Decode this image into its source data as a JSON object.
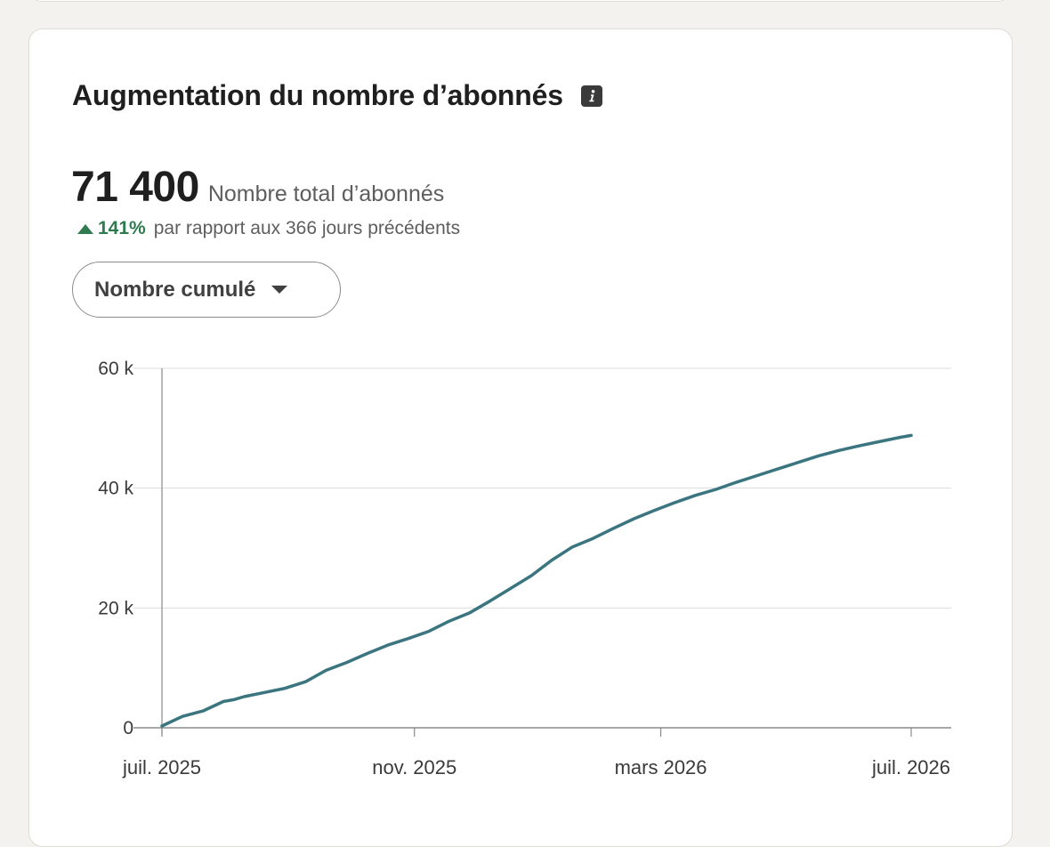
{
  "card": {
    "title": "Augmentation du nombre d’abonnés",
    "info_icon": "info-icon"
  },
  "summary": {
    "total_value": "71 400",
    "total_label": "Nombre total d’abonnés",
    "growth_pct": "141%",
    "growth_text": "par rapport aux 366 jours précédents",
    "growth_color": "#2f7a4f"
  },
  "dropdown": {
    "selected": "Nombre cumulé"
  },
  "chart_data": {
    "type": "line",
    "title": "",
    "xlabel": "",
    "ylabel": "",
    "line_color": "#3b7580",
    "grid": true,
    "ylim": [
      0,
      60000
    ],
    "y_ticks": [
      {
        "value": 0,
        "label": "0"
      },
      {
        "value": 20000,
        "label": "20 k"
      },
      {
        "value": 40000,
        "label": "40 k"
      },
      {
        "value": 60000,
        "label": "60 k"
      }
    ],
    "x_ticks": [
      {
        "value": "2025-07-01",
        "label": "juil. 2025"
      },
      {
        "value": "2025-11-01",
        "label": "nov. 2025"
      },
      {
        "value": "2026-03-01",
        "label": "mars 2026"
      },
      {
        "value": "2026-07-01",
        "label": "juil. 2026"
      }
    ],
    "xlim": [
      "2025-07-01",
      "2026-07-17"
    ],
    "series": [
      {
        "x": [
          "2025-07-01",
          "2025-07-11",
          "2025-07-21",
          "2025-07-31",
          "2025-08-05",
          "2025-08-10",
          "2025-08-20",
          "2025-08-30",
          "2025-09-09",
          "2025-09-19",
          "2025-09-29",
          "2025-10-09",
          "2025-10-19",
          "2025-10-29",
          "2025-11-08",
          "2025-11-18",
          "2025-11-28",
          "2025-12-08",
          "2025-12-18",
          "2025-12-28",
          "2026-01-07",
          "2026-01-17",
          "2026-01-27",
          "2026-02-06",
          "2026-02-16",
          "2026-02-26",
          "2026-03-08",
          "2026-03-18",
          "2026-03-28",
          "2026-04-07",
          "2026-04-17",
          "2026-04-27",
          "2026-05-07",
          "2026-05-17",
          "2026-05-27",
          "2026-06-06",
          "2026-06-16",
          "2026-06-26",
          "2026-07-01"
        ],
        "values": [
          300,
          1900,
          2800,
          4400,
          4700,
          5200,
          5900,
          6600,
          7700,
          9600,
          10900,
          12400,
          13800,
          14900,
          16100,
          17800,
          19200,
          21200,
          23300,
          25400,
          28000,
          30200,
          31600,
          33300,
          34900,
          36300,
          37600,
          38800,
          39800,
          41000,
          42100,
          43200,
          44300,
          45400,
          46300,
          47100,
          47800,
          48500,
          48800
        ]
      }
    ]
  }
}
